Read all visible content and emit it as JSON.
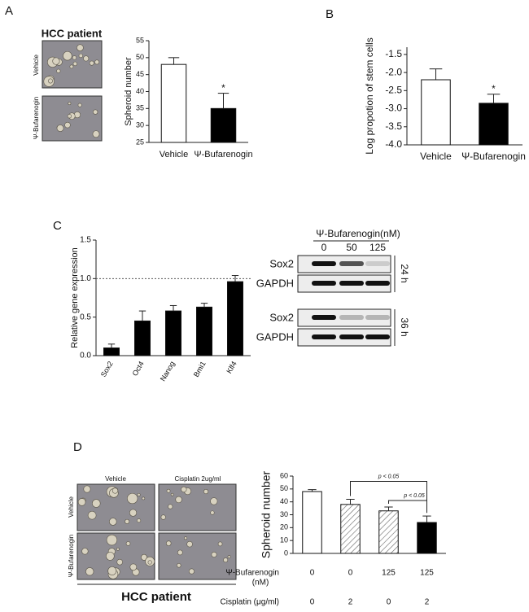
{
  "panels": {
    "A": {
      "label": "A",
      "image_title": "HCC patient",
      "image_labels": [
        "Vehicle",
        "Ψ-Bufarenogin"
      ]
    },
    "B": {
      "label": "B"
    },
    "C": {
      "label": "C"
    },
    "D": {
      "label": "D",
      "column_labels": [
        "Vehicle",
        "Cisplatin 2ug/ml"
      ],
      "row_labels": [
        "Vehicle",
        "Ψ-Bufarenogin"
      ],
      "footer": "HCC patient"
    }
  },
  "blot": {
    "title": "Ψ-Bufarenogin(nM)",
    "doses": [
      "0",
      "50",
      "125"
    ],
    "groups": [
      {
        "time": "24 h",
        "rows": [
          "Sox2",
          "GAPDH"
        ]
      },
      {
        "time": "36 h",
        "rows": [
          "Sox2",
          "GAPDH"
        ]
      }
    ]
  },
  "chart_data": [
    {
      "type": "bar",
      "y_label": "Spheroid number",
      "categories": [
        "Vehicle",
        "Ψ-Bufarenogin"
      ],
      "values": [
        48,
        35
      ],
      "errors": [
        2,
        4.5
      ],
      "fills": [
        "#ffffff",
        "#000000"
      ],
      "ylim": [
        25,
        55
      ],
      "yticks": [
        25,
        30,
        35,
        40,
        45,
        50,
        55
      ],
      "annotations": [
        "*"
      ]
    },
    {
      "type": "bar",
      "y_label": "Log propotion of stem cells",
      "categories": [
        "Vehicle",
        "Ψ-Bufarenogin"
      ],
      "values": [
        -2.2,
        -2.85
      ],
      "errors": [
        0.3,
        0.25
      ],
      "fills": [
        "#ffffff",
        "#000000"
      ],
      "ylim": [
        -4.0,
        -1.3
      ],
      "yticks": [
        {
          "value": -4,
          "label": "-4.0"
        },
        -3.5,
        {
          "value": -3,
          "label": "-3.0"
        },
        -2.5,
        {
          "value": -2,
          "label": "-2.0"
        },
        -1.5
      ],
      "annotations": [
        "*"
      ]
    },
    {
      "type": "bar",
      "y_label": "Relative gene expression",
      "categories": [
        "Sox2",
        "Oct4",
        "Nanog",
        "Bmi1",
        "Klf4"
      ],
      "values": [
        0.1,
        0.45,
        0.58,
        0.63,
        0.96
      ],
      "errors": [
        0.05,
        0.13,
        0.07,
        0.05,
        0.08
      ],
      "fills": [
        "#000000",
        "#000000",
        "#000000",
        "#000000",
        "#000000"
      ],
      "ylim": [
        0,
        1.5
      ],
      "yticks": [
        {
          "value": 0,
          "label": "0.0"
        },
        0.5,
        {
          "value": 1,
          "label": "1.0"
        },
        1.5
      ],
      "reference_line": 1
    },
    {
      "type": "bar",
      "y_label": "Spheroid number",
      "values": [
        48,
        38,
        33,
        24
      ],
      "errors": [
        1.5,
        4,
        3,
        5
      ],
      "fills": [
        "#ffffff",
        "hatch",
        "hatch",
        "#000000"
      ],
      "ylim": [
        0,
        60
      ],
      "yticks": [
        0,
        10,
        20,
        30,
        40,
        50,
        60
      ],
      "annotations": [
        "p < 0.05",
        "p < 0.05"
      ],
      "conditions": [
        {
          "label": "Ψ-Bufarenogin",
          "unit": "(nM)",
          "values": [
            0,
            0,
            125,
            125
          ]
        },
        {
          "label": "Cisplatin (μg/ml)",
          "values": [
            0,
            2,
            0,
            2
          ]
        }
      ]
    }
  ]
}
